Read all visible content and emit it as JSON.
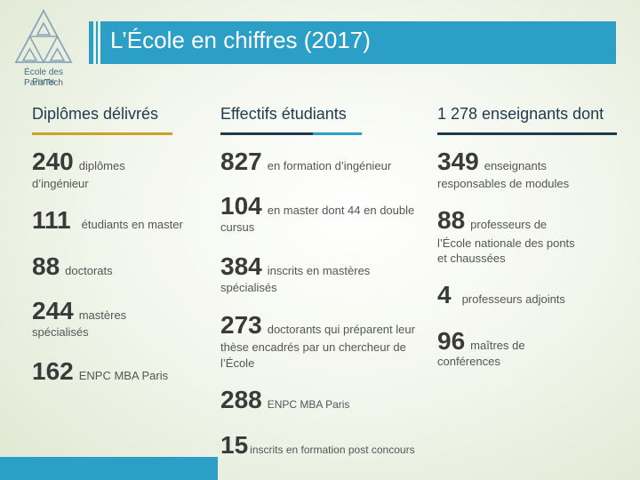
{
  "header": {
    "logo_line1": "École des Ponts",
    "logo_line2": "ParisTech",
    "title": "L’École en chiffres (2017)"
  },
  "colors": {
    "accent": "#2c9fc6",
    "gold": "#c9a227",
    "navy": "#1d3b4f"
  },
  "columns": [
    {
      "heading": "Diplômes délivrés",
      "entries": [
        {
          "num": "240",
          "text": "diplômes",
          "cont": "d’ingénieur"
        },
        {
          "num": "111",
          "text": "étudiants en master"
        },
        {
          "num": "88",
          "text": "doctorats"
        },
        {
          "num": "244",
          "text": "mastères",
          "cont": "spécialisés"
        },
        {
          "num": "162",
          "text": "ENPC MBA Paris"
        }
      ]
    },
    {
      "heading": "Effectifs étudiants",
      "entries": [
        {
          "num": "827",
          "text": "en formation d’ingénieur"
        },
        {
          "num": "104",
          "text": "en master dont 44 en double",
          "cont": "cursus"
        },
        {
          "num": "384",
          "text": "inscrits en mastères",
          "cont": "spécialisés"
        },
        {
          "num": "273",
          "text": "doctorants qui préparent leur",
          "cont": "thèse encadrés par un chercheur de",
          "cont2": "l’École"
        },
        {
          "num": "288",
          "text": "ENPC MBA Paris"
        },
        {
          "num": "15",
          "text": "inscrits en formation post concours"
        }
      ]
    },
    {
      "heading": "1 278 enseignants dont",
      "entries": [
        {
          "num": "349",
          "text": "enseignants",
          "cont": "responsables de modules"
        },
        {
          "num": "88",
          "text": "professeurs de",
          "cont": "l’École nationale des ponts",
          "cont2": "et chaussées"
        },
        {
          "num": "4",
          "text": "professeurs adjoints"
        },
        {
          "num": "96",
          "text": "maîtres de",
          "cont": "conférences"
        }
      ]
    }
  ]
}
